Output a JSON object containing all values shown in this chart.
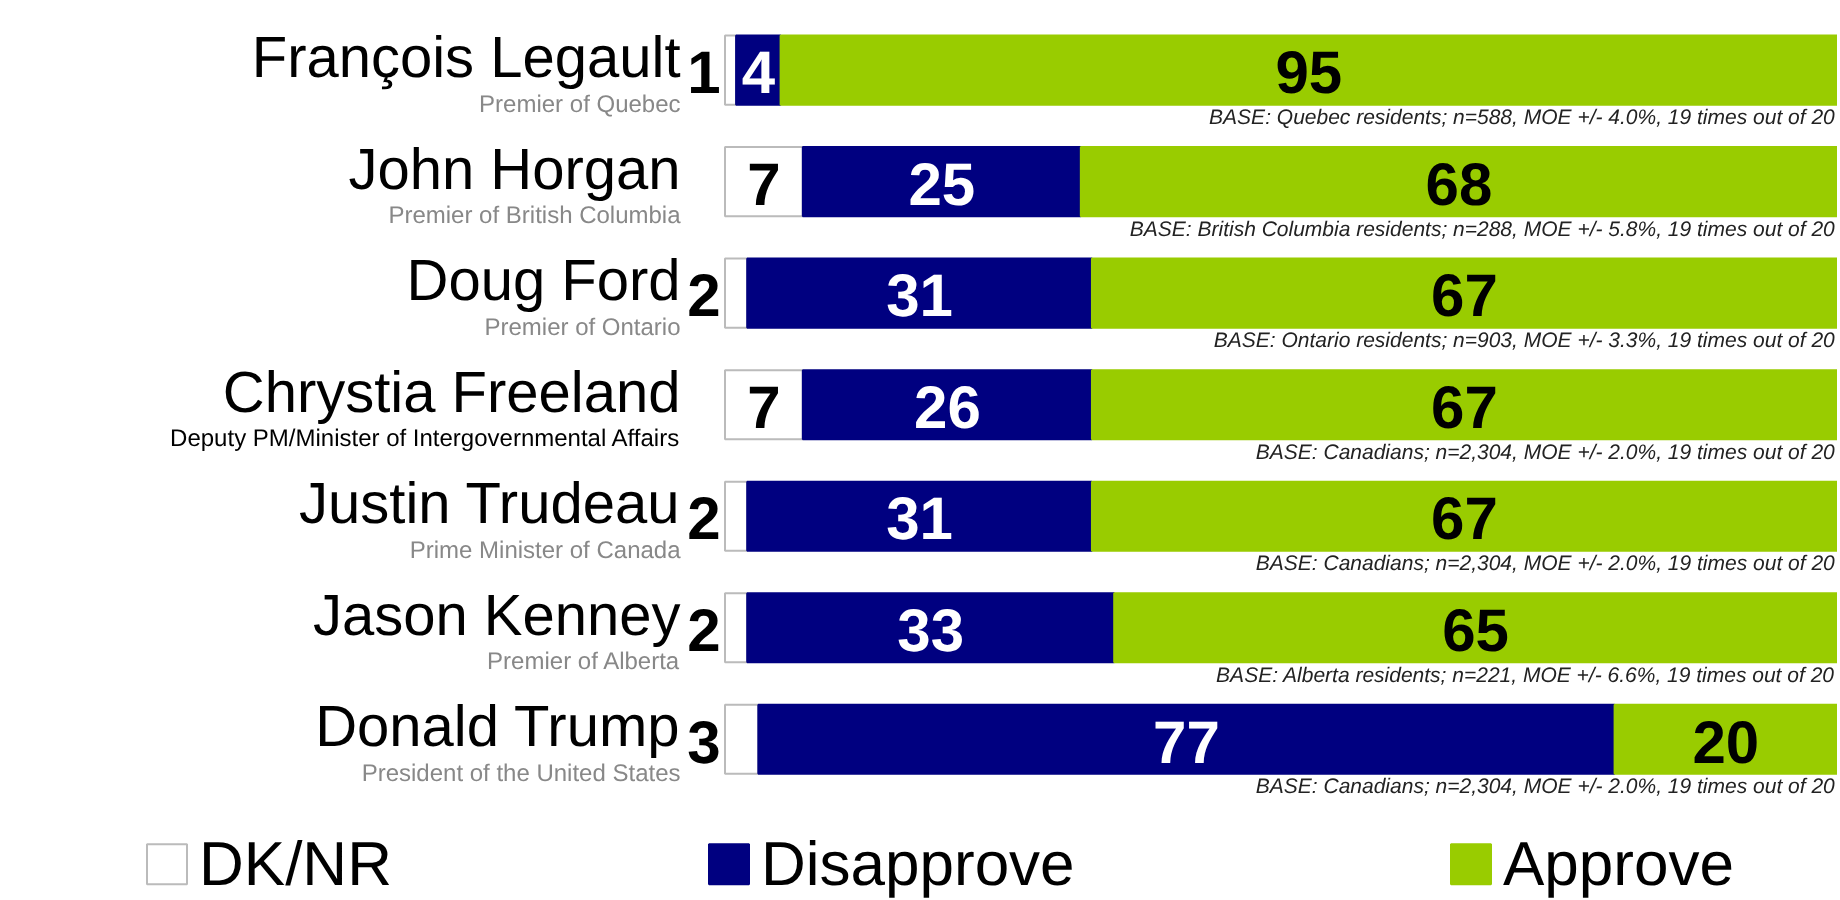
{
  "chart_data": {
    "type": "bar",
    "orientation": "horizontal",
    "stacked": true,
    "data_labels": true,
    "legend": "bottom",
    "grid": false,
    "xlim": [
      0,
      100
    ],
    "tick_labels": false,
    "categories": [
      "François Legault\nPremier of Quebec",
      "John Horgan\nPremier of British Columbia",
      "Doug Ford\nPremier of Ontario",
      "Chrystia Freeland\nDeputy PM/Minister of Intergovernmental Affairs",
      "Justin Trudeau\nPrime Minister of Canada",
      "Jason Kenney\nPremier of Alberta",
      "Donald Trump\nPresident of the United States"
    ],
    "series": [
      {
        "name": "DK/NR",
        "color": "#ffffff",
        "values": [
          1,
          7,
          2,
          7,
          2,
          2,
          3
        ]
      },
      {
        "name": "Disapprove",
        "color": "#000080",
        "values": [
          4,
          25,
          31,
          26,
          31,
          33,
          77
        ]
      },
      {
        "name": "Approve",
        "color": "#99cc00",
        "values": [
          95,
          68,
          67,
          67,
          67,
          65,
          20
        ]
      }
    ],
    "annotations": [
      "BASE: Quebec residents; n=588, MOE +/- 4.0%, 19 times out of 20",
      "BASE: British Columbia residents; n=288, MOE +/- 5.8%, 19 times out of 20",
      "BASE: Ontario residents; n=903, MOE +/- 3.3%, 19 times out of 20",
      "BASE: Canadians; n=2,304, MOE +/- 2.0%, 19 times out of 20",
      "BASE: Canadians; n=2,304, MOE +/- 2.0%, 19 times out of 20",
      "BASE: Alberta residents; n=221, MOE +/- 6.6%, 19 times out of 20",
      "BASE: Canadians; n=2,304, MOE +/- 2.0%, 19 times out of 20"
    ]
  }
}
